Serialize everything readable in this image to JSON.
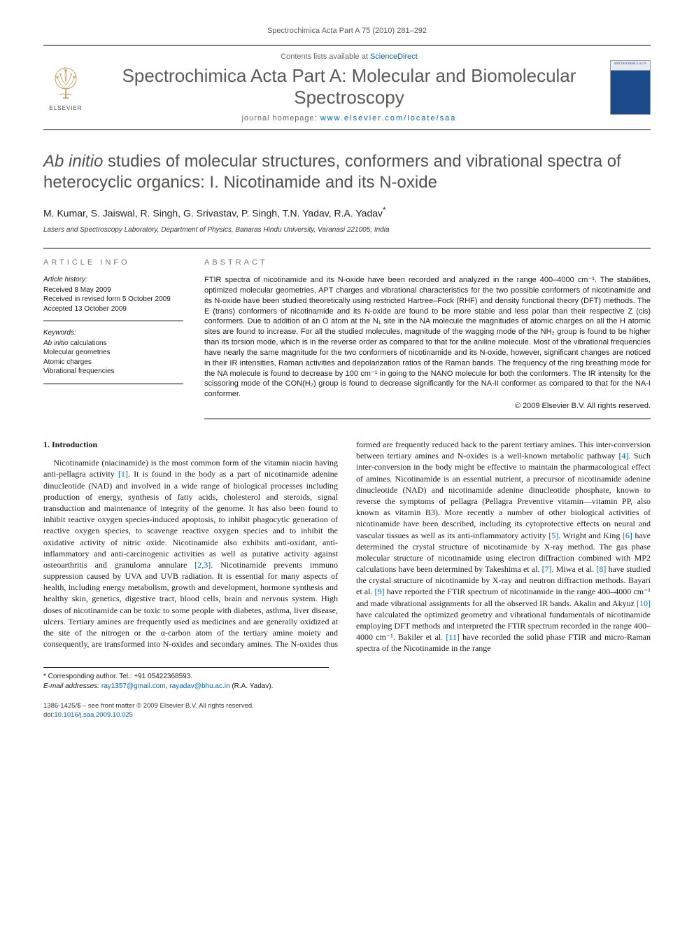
{
  "running_head": "Spectrochimica Acta Part A 75 (2010) 281–292",
  "masthead": {
    "contents_prefix": "Contents lists available at ",
    "contents_link": "ScienceDirect",
    "journal_title": "Spectrochimica Acta Part A: Molecular and Biomolecular Spectroscopy",
    "homepage_prefix": "journal homepage: ",
    "homepage_url": "www.elsevier.com/locate/saa",
    "publisher_name": "ELSEVIER",
    "cover_label": "SPECTROCHIMICA ACTA"
  },
  "article": {
    "title_ital": "Ab initio",
    "title_rest": " studies of molecular structures, conformers and vibrational spectra of heterocyclic organics: I. Nicotinamide and its N-oxide",
    "authors": "M. Kumar, S. Jaiswal, R. Singh, G. Srivastav, P. Singh, T.N. Yadav, R.A. Yadav",
    "corr_mark": "*",
    "affiliation": "Lasers and Spectroscopy Laboratory, Department of Physics, Banaras Hindu University, Varanasi 221005, India"
  },
  "info": {
    "heading": "article info",
    "history_label": "Article history:",
    "received": "Received 8 May 2009",
    "revised": "Received in revised form 5 October 2009",
    "accepted": "Accepted 13 October 2009",
    "keywords_label": "Keywords:",
    "kw1": "Ab initio",
    "kw1_rest": " calculations",
    "kw2": "Molecular geometries",
    "kw3": "Atomic charges",
    "kw4": "Vibrational frequencies"
  },
  "abstract": {
    "heading": "abstract",
    "text": "FTIR spectra of nicotinamide and its N-oxide have been recorded and analyzed in the range 400–4000 cm⁻¹. The stabilities, optimized molecular geometries, APT charges and vibrational characteristics for the two possible conformers of nicotinamide and its N-oxide have been studied theoretically using restricted Hartree–Fock (RHF) and density functional theory (DFT) methods. The E (trans) conformers of nicotinamide and its N-oxide are found to be more stable and less polar than their respective Z (cis) conformers. Due to addition of an O atom at the N₁ site in the NA molecule the magnitudes of atomic charges on all the H atomic sites are found to increase. For all the studied molecules, magnitude of the wagging mode of the NH₂ group is found to be higher than its torsion mode, which is in the reverse order as compared to that for the aniline molecule. Most of the vibrational frequencies have nearly the same magnitude for the two conformers of nicotinamide and its N-oxide, however, significant changes are noticed in their IR intensities, Raman activities and depolarization ratios of the Raman bands. The frequency of the ring breathing mode for the NA molecule is found to decrease by 100 cm⁻¹ in going to the NANO molecule for both the conformers. The IR intensity for the scissoring mode of the CON(H₂) group is found to decrease significantly for the NA-II conformer as compared to that for the NA-I conformer.",
    "copyright": "© 2009 Elsevier B.V. All rights reserved."
  },
  "section1": {
    "heading": "1.  Introduction",
    "para": "Nicotinamide (niacinamide) is the most common form of the vitamin niacin having anti-pellagra activity [1]. It is found in the body as a part of nicotinamide adenine dinucleotide (NAD) and involved in a wide range of biological processes including production of energy, synthesis of fatty acids, cholesterol and steroids, signal transduction and maintenance of integrity of the genome. It has also been found to inhibit reactive oxygen species-induced apoptosis, to inhibit phagocytic generation of reactive oxygen species, to scavenge reactive oxygen species and to inhibit the oxidative activity of nitric oxide. Nicotinamide also exhibits anti-oxidant, anti-inflammatory and anti-carcinogenic activities as well as putative activity against osteoarthritis and granuloma annulare [2,3]. Nicotinamide prevents immuno suppression caused by UVA and UVB radiation. It is essential for many aspects of health, including energy metabolism, growth and development, hormone synthesis and healthy skin, genetics, digestive tract, blood cells, brain and nervous system. High doses of nicotinamide can be toxic to some people with diabetes, asthma, liver disease, ulcers. Tertiary amines are frequently used as medicines and are generally oxidized at the site of the nitrogen or the α-carbon atom of the tertiary amine moiety and consequently, are transformed into N-oxides and secondary amines. The N-oxides thus formed are frequently reduced back to the parent tertiary amines. This inter-conversion between tertiary amines and N-oxides is a well-known metabolic pathway [4]. Such inter-conversion in the body might be effective to maintain the pharmacological effect of amines. Nicotinamide is an essential nutrient, a precursor of nicotinamide adenine dinucleotide (NAD) and nicotinamide adenine dinucleotide phosphate, known to reverse the symptoms of pellagra (Pellagra Preventive vitamin—vitamin PP, also known as vitamin B3). More recently a number of other biological activities of nicotinamide have been described, including its cytoprotective effects on neural and vascular tissues as well as its anti-inflammatory activity [5]. Wright and King [6] have determined the crystal structure of nicotinamide by X-ray method. The gas phase molecular structure of nicotinamide using electron diffraction combined with MP2 calculations have been determined by Takeshima et al. [7]. Miwa et al. [8] have studied the crystal structure of nicotinamide by X-ray and neutron diffraction methods. Bayari et al. [9] have reported the FTIR spectrum of nicotinamide in the range 400–4000 cm⁻¹ and made vibrational assignments for all the observed IR bands. Akalin and Akyuz [10] have calculated the optimized geometry and vibrational fundamentals of nicotinamide employing DFT methods and interpreted the FTIR spectrum recorded in the range 400–4000 cm⁻¹. Bakiler et al. [11] have recorded the solid phase FTIR and micro-Raman spectra of the Nicotinamide in the range"
  },
  "footnotes": {
    "corr": "* Corresponding author. Tel.: +91 05422368593.",
    "email_label": "E-mail addresses: ",
    "email1": "ray1357@gmail.com",
    "email_sep": ", ",
    "email2": "rayadav@bhu.ac.in",
    "email_attr": " (R.A. Yadav)."
  },
  "footer": {
    "line1": "1386-1425/$ – see front matter © 2009 Elsevier B.V. All rights reserved.",
    "doi_label": "doi:",
    "doi": "10.1016/j.saa.2009.10.025"
  },
  "colors": {
    "link": "#0066aa",
    "heading_gray": "#5a5a58",
    "text": "#1a1a1a",
    "cover_blue": "#1a4a8a"
  }
}
